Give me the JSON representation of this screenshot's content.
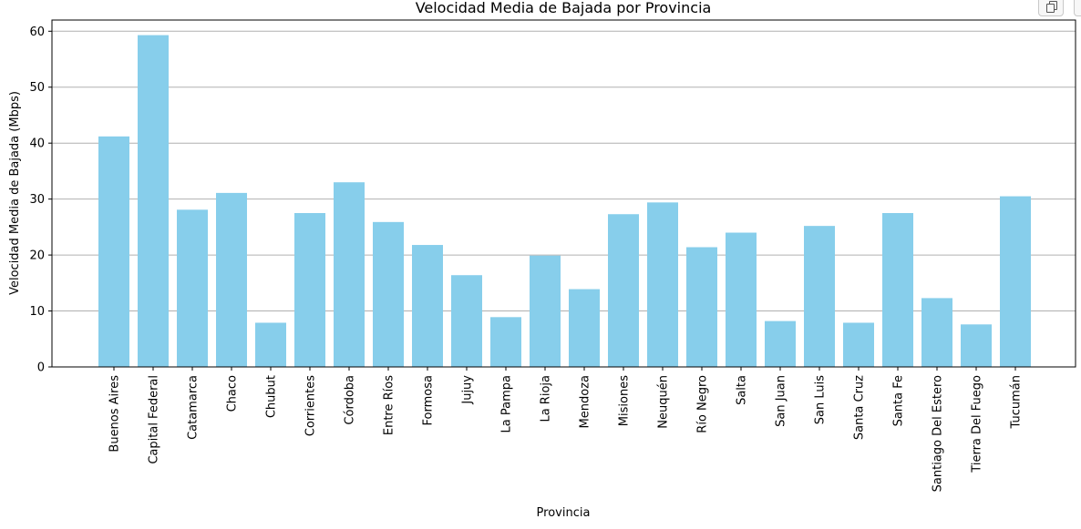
{
  "colors": {
    "bar": "#87ceeb",
    "grid": "#b0b0b0",
    "axis": "#000000",
    "background": "#ffffff"
  },
  "toolbar": {
    "copy_icon": "copy-icon"
  },
  "chart_data": {
    "type": "bar",
    "title": "Velocidad Media de Bajada por Provincia",
    "xlabel": "Provincia",
    "ylabel": "Velocidad Media de Bajada (Mbps)",
    "ylim": [
      0,
      62
    ],
    "yticks": [
      0,
      10,
      20,
      30,
      40,
      50,
      60
    ],
    "grid": "y",
    "categories": [
      "Buenos Aires",
      "Capital Federal",
      "Catamarca",
      "Chaco",
      "Chubut",
      "Corrientes",
      "Córdoba",
      "Entre Ríos",
      "Formosa",
      "Jujuy",
      "La Pampa",
      "La Rioja",
      "Mendoza",
      "Misiones",
      "Neuquén",
      "Río Negro",
      "Salta",
      "San Juan",
      "San Luis",
      "Santa Cruz",
      "Santa Fe",
      "Santiago Del Estero",
      "Tierra Del Fuego",
      "Tucumán"
    ],
    "values": [
      41.2,
      59.3,
      28.1,
      31.1,
      7.9,
      27.5,
      33.0,
      25.9,
      21.8,
      16.4,
      8.9,
      19.9,
      13.9,
      27.3,
      29.4,
      21.4,
      24.0,
      8.2,
      25.2,
      7.9,
      27.5,
      12.3,
      7.6,
      30.5
    ]
  }
}
